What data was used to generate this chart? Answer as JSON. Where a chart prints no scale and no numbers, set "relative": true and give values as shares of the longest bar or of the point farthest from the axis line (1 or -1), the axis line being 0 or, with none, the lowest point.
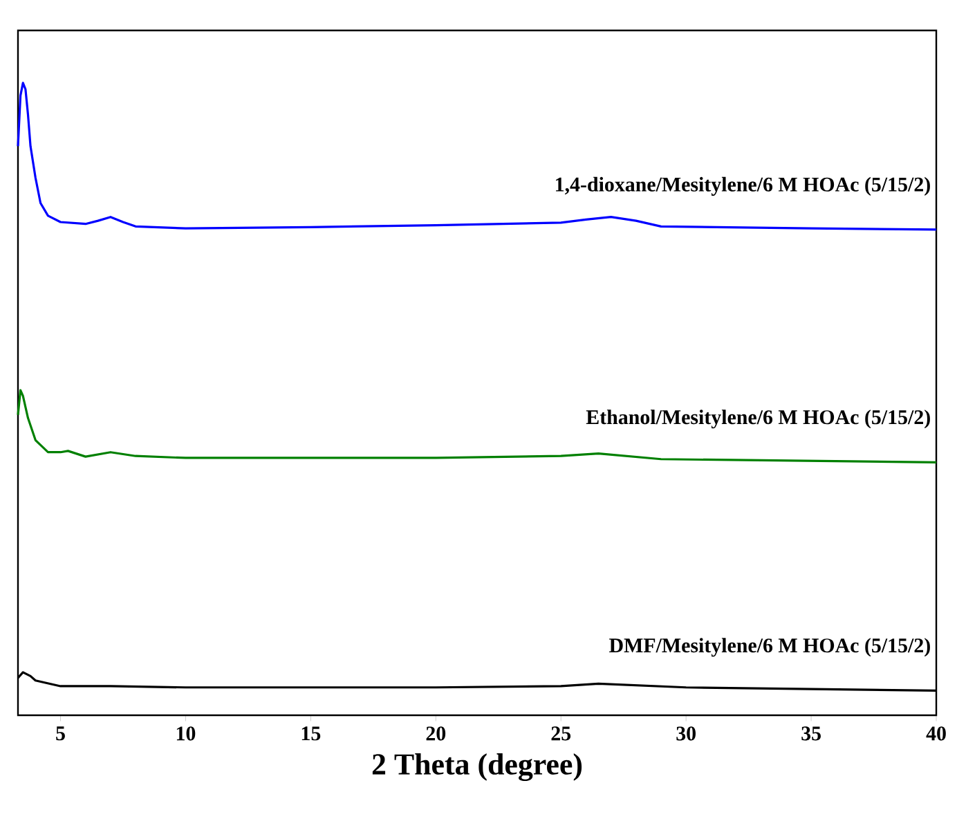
{
  "chart_data": {
    "type": "line",
    "xlabel": "2 Theta (degree)",
    "relative": true,
    "xlim": [
      3.3,
      40
    ],
    "xticks": [
      5,
      10,
      15,
      20,
      25,
      30,
      35,
      40
    ],
    "legend": false,
    "grid": false,
    "marker": "none",
    "line_style": "solid",
    "series": [
      {
        "name": "1,4-dioxane/Mesitylene/6 M HOAc (5/15/2)",
        "color": "#0000ff",
        "x": [
          3.3,
          3.4,
          3.5,
          3.6,
          3.7,
          3.8,
          4.0,
          4.2,
          4.5,
          5,
          6,
          6.5,
          7,
          7.5,
          8,
          10,
          15,
          20,
          25,
          26,
          27,
          28,
          29,
          35,
          40
        ],
        "values": [
          0.9,
          0.98,
          1.0,
          0.99,
          0.95,
          0.9,
          0.85,
          0.81,
          0.79,
          0.78,
          0.777,
          0.782,
          0.788,
          0.78,
          0.773,
          0.77,
          0.772,
          0.775,
          0.779,
          0.784,
          0.788,
          0.782,
          0.773,
          0.77,
          0.768
        ]
      },
      {
        "name": "Ethanol/Mesitylene/6 M HOAc (5/15/2)",
        "color": "#008000",
        "x": [
          3.3,
          3.4,
          3.5,
          3.7,
          4.0,
          4.5,
          5,
          5.3,
          6,
          7,
          8,
          10,
          20,
          25,
          26.5,
          29,
          40
        ],
        "values": [
          0.475,
          0.514,
          0.505,
          0.47,
          0.435,
          0.416,
          0.416,
          0.418,
          0.409,
          0.416,
          0.41,
          0.407,
          0.407,
          0.41,
          0.414,
          0.405,
          0.4
        ]
      },
      {
        "name": "DMF/Mesitylene/6 M HOAc (5/15/2)",
        "color": "#000000",
        "x": [
          3.3,
          3.5,
          3.8,
          4,
          5,
          7,
          10,
          20,
          25,
          26.5,
          30,
          40
        ],
        "values": [
          0.059,
          0.068,
          0.062,
          0.055,
          0.046,
          0.046,
          0.044,
          0.044,
          0.046,
          0.05,
          0.044,
          0.039
        ]
      }
    ]
  }
}
